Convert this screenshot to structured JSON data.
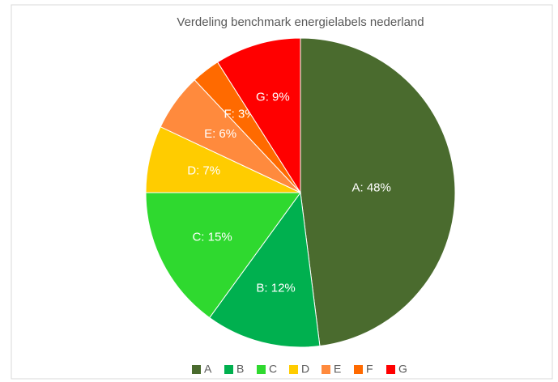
{
  "chart_data": {
    "type": "pie",
    "title": "Verdeling benchmark energielabels nederland",
    "categories": [
      "A",
      "B",
      "C",
      "D",
      "E",
      "F",
      "G"
    ],
    "values": [
      48,
      12,
      15,
      7,
      6,
      3,
      9
    ],
    "value_labels": [
      "A: 48%",
      "B: 12%",
      "C: 15%",
      "D: 7%",
      "E: 6%",
      "F: 3%",
      "G: 9%"
    ],
    "colors": [
      "#4a6b2e",
      "#00b04f",
      "#2fd92f",
      "#ffcc00",
      "#ff8a3d",
      "#ff6a00",
      "#ff0000"
    ],
    "legend": "bottom"
  }
}
